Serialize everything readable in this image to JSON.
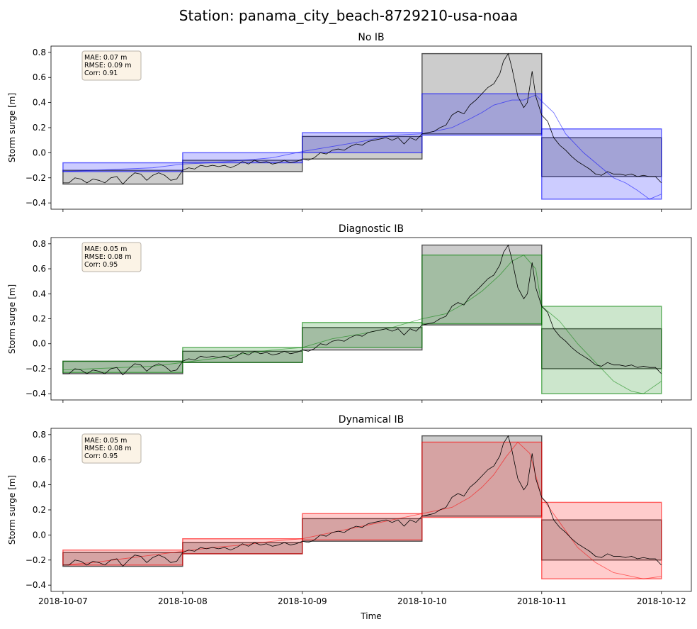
{
  "figure": {
    "title": "Station: panama_city_beach-8729210-usa-noaa"
  },
  "chart_data": [
    {
      "type": "line",
      "title": "No IB",
      "ylabel": "Storm surge [m]",
      "xlabel": "",
      "ylim": [
        -0.45,
        0.85
      ],
      "yticks": [
        -0.4,
        -0.2,
        0.0,
        0.2,
        0.4,
        0.6,
        0.8
      ],
      "ytick_labels": [
        "−0.4",
        "−0.2",
        "0.0",
        "0.2",
        "0.4",
        "0.6",
        "0.8"
      ],
      "x_days_range": [
        -0.1,
        5.25
      ],
      "xticks_days": [
        0,
        1,
        2,
        3,
        4,
        5
      ],
      "xtick_labels": [],
      "stats": [
        "MAE: 0.07 m",
        "RMSE: 0.09 m",
        "Corr: 0.91"
      ],
      "color": "#0000ff",
      "observed_color": "#000000",
      "boxes_observed": [
        {
          "day": 0,
          "min": -0.25,
          "max": -0.14
        },
        {
          "day": 1,
          "min": -0.15,
          "max": -0.06
        },
        {
          "day": 2,
          "min": -0.05,
          "max": 0.13
        },
        {
          "day": 3,
          "min": 0.15,
          "max": 0.79
        },
        {
          "day": 4,
          "min": -0.19,
          "max": 0.12
        }
      ],
      "boxes_model": [
        {
          "day": 0,
          "min": -0.15,
          "max": -0.08
        },
        {
          "day": 1,
          "min": -0.08,
          "max": 0.0
        },
        {
          "day": 2,
          "min": 0.0,
          "max": 0.16
        },
        {
          "day": 3,
          "min": 0.14,
          "max": 0.47
        },
        {
          "day": 4,
          "min": -0.37,
          "max": 0.19
        }
      ],
      "model_series": [
        [
          0,
          -0.15
        ],
        [
          0.25,
          -0.14
        ],
        [
          0.5,
          -0.13
        ],
        [
          0.75,
          -0.12
        ],
        [
          1,
          -0.09
        ],
        [
          1.25,
          -0.08
        ],
        [
          1.5,
          -0.06
        ],
        [
          1.75,
          -0.04
        ],
        [
          2,
          0.01
        ],
        [
          2.25,
          0.05
        ],
        [
          2.5,
          0.09
        ],
        [
          2.75,
          0.14
        ],
        [
          3,
          0.15
        ],
        [
          3.25,
          0.2
        ],
        [
          3.4,
          0.27
        ],
        [
          3.5,
          0.32
        ],
        [
          3.6,
          0.38
        ],
        [
          3.75,
          0.42
        ],
        [
          3.85,
          0.42
        ],
        [
          3.95,
          0.46
        ],
        [
          4,
          0.41
        ],
        [
          4.1,
          0.32
        ],
        [
          4.2,
          0.15
        ],
        [
          4.35,
          0.0
        ],
        [
          4.5,
          -0.12
        ],
        [
          4.6,
          -0.2
        ],
        [
          4.7,
          -0.24
        ],
        [
          4.8,
          -0.3
        ],
        [
          4.9,
          -0.37
        ],
        [
          5,
          -0.33
        ]
      ]
    },
    {
      "type": "line",
      "title": "Diagnostic IB",
      "ylabel": "Storm surge [m]",
      "xlabel": "",
      "ylim": [
        -0.45,
        0.85
      ],
      "yticks": [
        -0.4,
        -0.2,
        0.0,
        0.2,
        0.4,
        0.6,
        0.8
      ],
      "ytick_labels": [
        "−0.4",
        "−0.2",
        "0.0",
        "0.2",
        "0.4",
        "0.6",
        "0.8"
      ],
      "x_days_range": [
        -0.1,
        5.25
      ],
      "xticks_days": [
        0,
        1,
        2,
        3,
        4,
        5
      ],
      "xtick_labels": [],
      "stats": [
        "MAE: 0.05 m",
        "RMSE: 0.08 m",
        "Corr: 0.95"
      ],
      "color": "#008000",
      "observed_color": "#000000",
      "boxes_observed": [
        {
          "day": 0,
          "min": -0.24,
          "max": -0.14
        },
        {
          "day": 1,
          "min": -0.15,
          "max": -0.06
        },
        {
          "day": 2,
          "min": -0.05,
          "max": 0.13
        },
        {
          "day": 3,
          "min": 0.15,
          "max": 0.79
        },
        {
          "day": 4,
          "min": -0.2,
          "max": 0.12
        }
      ],
      "boxes_model": [
        {
          "day": 0,
          "min": -0.23,
          "max": -0.14
        },
        {
          "day": 1,
          "min": -0.15,
          "max": -0.03
        },
        {
          "day": 2,
          "min": -0.03,
          "max": 0.17
        },
        {
          "day": 3,
          "min": 0.16,
          "max": 0.71
        },
        {
          "day": 4,
          "min": -0.4,
          "max": 0.3
        }
      ],
      "model_series": [
        [
          0,
          -0.21
        ],
        [
          0.25,
          -0.2
        ],
        [
          0.5,
          -0.19
        ],
        [
          0.75,
          -0.18
        ],
        [
          1,
          -0.15
        ],
        [
          1.25,
          -0.12
        ],
        [
          1.5,
          -0.08
        ],
        [
          1.75,
          -0.05
        ],
        [
          2,
          -0.03
        ],
        [
          2.25,
          0.04
        ],
        [
          2.5,
          0.08
        ],
        [
          2.75,
          0.13
        ],
        [
          3,
          0.2
        ],
        [
          3.2,
          0.24
        ],
        [
          3.35,
          0.32
        ],
        [
          3.5,
          0.42
        ],
        [
          3.65,
          0.55
        ],
        [
          3.75,
          0.66
        ],
        [
          3.85,
          0.71
        ],
        [
          3.95,
          0.6
        ],
        [
          4,
          0.3
        ],
        [
          4.15,
          0.18
        ],
        [
          4.3,
          0.0
        ],
        [
          4.45,
          -0.15
        ],
        [
          4.6,
          -0.3
        ],
        [
          4.75,
          -0.38
        ],
        [
          4.85,
          -0.4
        ],
        [
          5,
          -0.3
        ]
      ]
    },
    {
      "type": "line",
      "title": "Dynamical IB",
      "ylabel": "Storm surge [m]",
      "xlabel": "Time",
      "ylim": [
        -0.45,
        0.85
      ],
      "yticks": [
        -0.4,
        -0.2,
        0.0,
        0.2,
        0.4,
        0.6,
        0.8
      ],
      "ytick_labels": [
        "−0.4",
        "−0.2",
        "0.0",
        "0.2",
        "0.4",
        "0.6",
        "0.8"
      ],
      "x_days_range": [
        -0.1,
        5.25
      ],
      "xticks_days": [
        0,
        1,
        2,
        3,
        4,
        5
      ],
      "xtick_labels": [
        "2018-10-07",
        "2018-10-08",
        "2018-10-09",
        "2018-10-10",
        "2018-10-11",
        "2018-10-12"
      ],
      "stats": [
        "MAE: 0.05 m",
        "RMSE: 0.08 m",
        "Corr: 0.95"
      ],
      "color": "#ff0000",
      "observed_color": "#000000",
      "boxes_observed": [
        {
          "day": 0,
          "min": -0.25,
          "max": -0.14
        },
        {
          "day": 1,
          "min": -0.15,
          "max": -0.06
        },
        {
          "day": 2,
          "min": -0.05,
          "max": 0.13
        },
        {
          "day": 3,
          "min": 0.15,
          "max": 0.79
        },
        {
          "day": 4,
          "min": -0.2,
          "max": 0.12
        }
      ],
      "boxes_model": [
        {
          "day": 0,
          "min": -0.24,
          "max": -0.12
        },
        {
          "day": 1,
          "min": -0.15,
          "max": -0.03
        },
        {
          "day": 2,
          "min": -0.04,
          "max": 0.17
        },
        {
          "day": 3,
          "min": 0.14,
          "max": 0.74
        },
        {
          "day": 4,
          "min": -0.35,
          "max": 0.26
        }
      ],
      "model_series": [
        [
          0,
          -0.24
        ],
        [
          0.25,
          -0.22
        ],
        [
          0.5,
          -0.19
        ],
        [
          0.75,
          -0.16
        ],
        [
          1,
          -0.13
        ],
        [
          1.25,
          -0.1
        ],
        [
          1.5,
          -0.08
        ],
        [
          1.75,
          -0.05
        ],
        [
          2,
          -0.03
        ],
        [
          2.25,
          0.02
        ],
        [
          2.5,
          0.07
        ],
        [
          2.75,
          0.12
        ],
        [
          3,
          0.17
        ],
        [
          3.25,
          0.22
        ],
        [
          3.4,
          0.3
        ],
        [
          3.5,
          0.38
        ],
        [
          3.6,
          0.48
        ],
        [
          3.7,
          0.62
        ],
        [
          3.8,
          0.74
        ],
        [
          3.9,
          0.65
        ],
        [
          4,
          0.3
        ],
        [
          4.15,
          0.1
        ],
        [
          4.3,
          -0.1
        ],
        [
          4.45,
          -0.22
        ],
        [
          4.6,
          -0.3
        ],
        [
          4.75,
          -0.33
        ],
        [
          4.85,
          -0.35
        ],
        [
          5,
          -0.33
        ]
      ]
    }
  ],
  "observed_series": [
    [
      0,
      -0.24
    ],
    [
      0.05,
      -0.24
    ],
    [
      0.1,
      -0.2
    ],
    [
      0.15,
      -0.21
    ],
    [
      0.2,
      -0.24
    ],
    [
      0.25,
      -0.21
    ],
    [
      0.3,
      -0.22
    ],
    [
      0.35,
      -0.24
    ],
    [
      0.4,
      -0.2
    ],
    [
      0.45,
      -0.19
    ],
    [
      0.5,
      -0.25
    ],
    [
      0.55,
      -0.2
    ],
    [
      0.6,
      -0.16
    ],
    [
      0.65,
      -0.17
    ],
    [
      0.7,
      -0.22
    ],
    [
      0.75,
      -0.18
    ],
    [
      0.8,
      -0.16
    ],
    [
      0.85,
      -0.18
    ],
    [
      0.9,
      -0.22
    ],
    [
      0.95,
      -0.21
    ],
    [
      1,
      -0.14
    ],
    [
      1.05,
      -0.12
    ],
    [
      1.1,
      -0.13
    ],
    [
      1.15,
      -0.1
    ],
    [
      1.2,
      -0.11
    ],
    [
      1.25,
      -0.1
    ],
    [
      1.3,
      -0.11
    ],
    [
      1.35,
      -0.1
    ],
    [
      1.4,
      -0.12
    ],
    [
      1.45,
      -0.1
    ],
    [
      1.5,
      -0.07
    ],
    [
      1.55,
      -0.09
    ],
    [
      1.6,
      -0.06
    ],
    [
      1.65,
      -0.08
    ],
    [
      1.7,
      -0.07
    ],
    [
      1.75,
      -0.09
    ],
    [
      1.8,
      -0.08
    ],
    [
      1.85,
      -0.06
    ],
    [
      1.9,
      -0.08
    ],
    [
      1.95,
      -0.07
    ],
    [
      2,
      -0.05
    ],
    [
      2.05,
      -0.06
    ],
    [
      2.1,
      -0.04
    ],
    [
      2.15,
      0.0
    ],
    [
      2.2,
      -0.01
    ],
    [
      2.25,
      0.02
    ],
    [
      2.3,
      0.03
    ],
    [
      2.35,
      0.02
    ],
    [
      2.4,
      0.05
    ],
    [
      2.45,
      0.07
    ],
    [
      2.5,
      0.06
    ],
    [
      2.55,
      0.09
    ],
    [
      2.6,
      0.1
    ],
    [
      2.65,
      0.11
    ],
    [
      2.7,
      0.12
    ],
    [
      2.75,
      0.1
    ],
    [
      2.8,
      0.12
    ],
    [
      2.85,
      0.07
    ],
    [
      2.9,
      0.12
    ],
    [
      2.95,
      0.1
    ],
    [
      3,
      0.15
    ],
    [
      3.05,
      0.16
    ],
    [
      3.1,
      0.17
    ],
    [
      3.15,
      0.2
    ],
    [
      3.2,
      0.22
    ],
    [
      3.25,
      0.3
    ],
    [
      3.3,
      0.33
    ],
    [
      3.35,
      0.31
    ],
    [
      3.4,
      0.38
    ],
    [
      3.45,
      0.42
    ],
    [
      3.5,
      0.47
    ],
    [
      3.55,
      0.52
    ],
    [
      3.6,
      0.55
    ],
    [
      3.65,
      0.63
    ],
    [
      3.68,
      0.73
    ],
    [
      3.72,
      0.79
    ],
    [
      3.75,
      0.68
    ],
    [
      3.8,
      0.45
    ],
    [
      3.85,
      0.36
    ],
    [
      3.88,
      0.4
    ],
    [
      3.92,
      0.65
    ],
    [
      3.95,
      0.45
    ],
    [
      4,
      0.3
    ],
    [
      4.05,
      0.25
    ],
    [
      4.1,
      0.12
    ],
    [
      4.15,
      0.06
    ],
    [
      4.2,
      0.02
    ],
    [
      4.25,
      -0.03
    ],
    [
      4.3,
      -0.07
    ],
    [
      4.35,
      -0.1
    ],
    [
      4.4,
      -0.13
    ],
    [
      4.45,
      -0.17
    ],
    [
      4.5,
      -0.18
    ],
    [
      4.55,
      -0.15
    ],
    [
      4.6,
      -0.17
    ],
    [
      4.65,
      -0.17
    ],
    [
      4.7,
      -0.18
    ],
    [
      4.75,
      -0.17
    ],
    [
      4.8,
      -0.19
    ],
    [
      4.85,
      -0.18
    ],
    [
      4.9,
      -0.19
    ],
    [
      4.95,
      -0.19
    ],
    [
      5,
      -0.24
    ]
  ]
}
